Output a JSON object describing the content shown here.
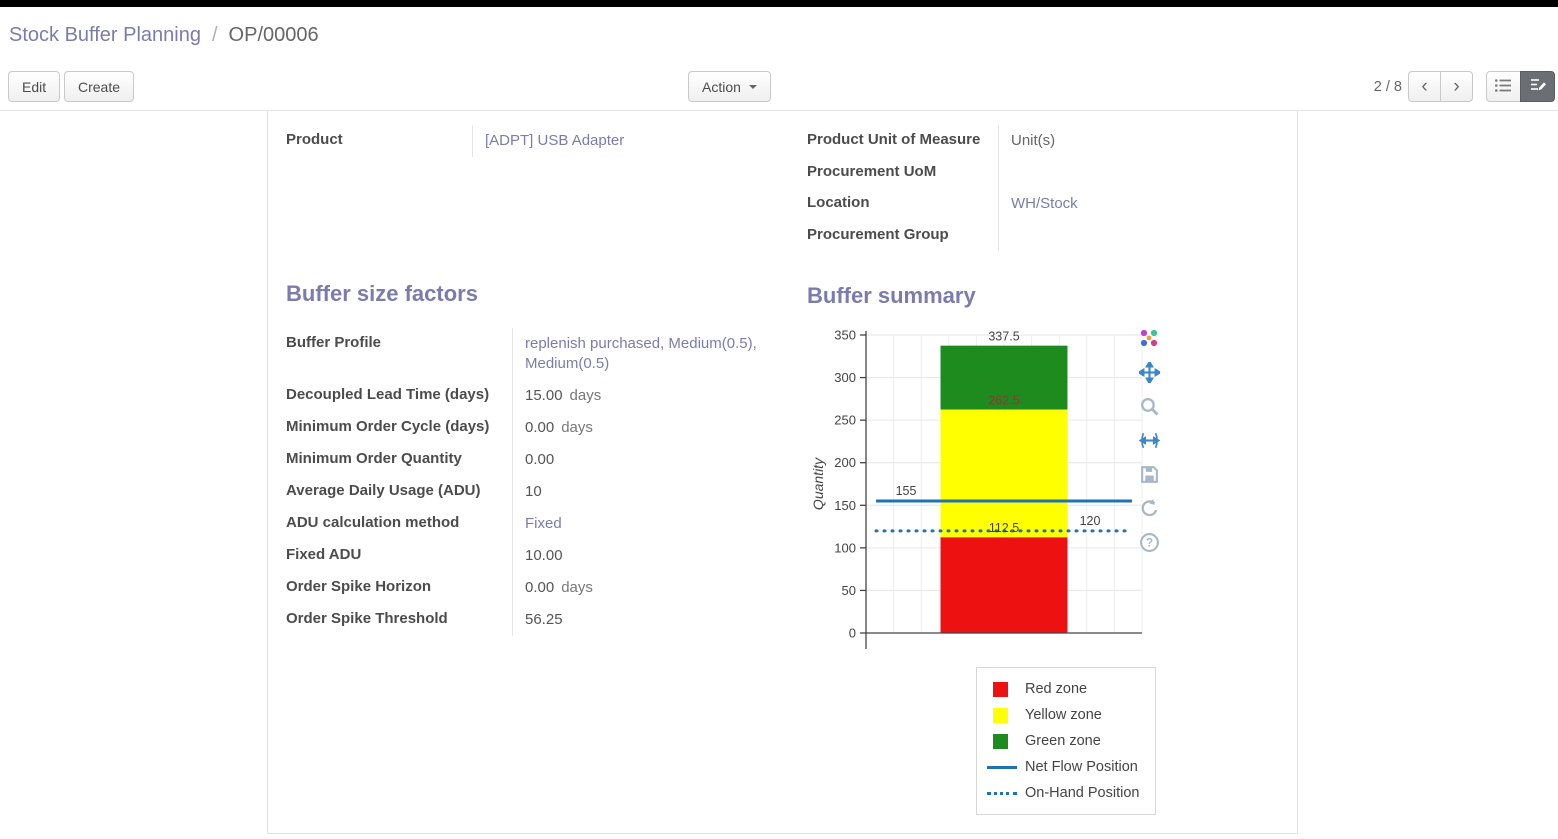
{
  "breadcrumb": {
    "section": "Stock Buffer Planning",
    "separator": "/",
    "record": "OP/00006"
  },
  "toolbar": {
    "edit_label": "Edit",
    "create_label": "Create",
    "action_label": "Action",
    "pager": "2 / 8"
  },
  "icons": {
    "chevron_left": "‹",
    "chevron_right": "›",
    "caret_down": "caret-down",
    "list_view": "list-view",
    "form_view": "form-view"
  },
  "sheet": {
    "product_group": {
      "left": [
        {
          "label": "Product",
          "value": "[ADPT] USB Adapter"
        }
      ],
      "right": [
        {
          "label": "Product Unit of Measure",
          "value": "Unit(s)"
        },
        {
          "label": "Procurement UoM",
          "value": ""
        },
        {
          "label": "Location",
          "value": "WH/Stock"
        },
        {
          "label": "Procurement Group",
          "value": ""
        }
      ]
    },
    "factors": {
      "title": "Buffer size factors",
      "rows": [
        {
          "label": "Buffer Profile",
          "value": "replenish purchased, Medium(0.5), Medium(0.5)",
          "suffix": ""
        },
        {
          "label": "Decoupled Lead Time (days)",
          "value": "15.00",
          "suffix": "days"
        },
        {
          "label": "Minimum Order Cycle (days)",
          "value": "0.00",
          "suffix": "days"
        },
        {
          "label": "Minimum Order Quantity",
          "value": "0.00",
          "suffix": ""
        },
        {
          "label": "Average Daily Usage (ADU)",
          "value": "10",
          "suffix": ""
        },
        {
          "label": "ADU calculation method",
          "value": "Fixed",
          "suffix": ""
        },
        {
          "label": "Fixed ADU",
          "value": "10.00",
          "suffix": ""
        },
        {
          "label": "Order Spike Horizon",
          "value": "0.00",
          "suffix": "days"
        },
        {
          "label": "Order Spike Threshold",
          "value": "56.25",
          "suffix": ""
        }
      ]
    },
    "summary": {
      "title": "Buffer summary"
    }
  },
  "chart_data": {
    "type": "bar",
    "title": "",
    "xlabel": "",
    "ylabel": "Quantity",
    "ylim": [
      0,
      350
    ],
    "yticks": [
      0,
      50,
      100,
      150,
      200,
      250,
      300,
      350
    ],
    "grid": true,
    "zones": [
      {
        "name": "Red zone",
        "from": 0,
        "to": 112.5,
        "color": "#ee1111"
      },
      {
        "name": "Yellow zone",
        "from": 112.5,
        "to": 262.5,
        "color": "#ffff00"
      },
      {
        "name": "Green zone",
        "from": 262.5,
        "to": 337.5,
        "color": "#1d8b1d"
      }
    ],
    "bar_labels": [
      {
        "text": "337.5",
        "value": 337.5,
        "color": "#444444"
      },
      {
        "text": "262.5",
        "value": 262.5,
        "color": "#993333"
      },
      {
        "text": "112.5",
        "value": 112.5,
        "color": "#444444"
      }
    ],
    "lines": [
      {
        "name": "Net Flow Position",
        "value": 155,
        "style": "solid",
        "color": "#2171b5",
        "label": "155",
        "label_side": "left"
      },
      {
        "name": "On-Hand Position",
        "value": 120,
        "style": "dotted",
        "color": "#2171b5",
        "label": "120",
        "label_side": "right"
      }
    ],
    "legend": [
      "Red zone",
      "Yellow zone",
      "Green zone",
      "Net Flow Position",
      "On-Hand Position"
    ],
    "legend_position": "bottom-right"
  },
  "chart_toolbar": {
    "icons": [
      "plotly-logo",
      "pan",
      "zoom",
      "autoscale",
      "save",
      "reset-axes",
      "help"
    ]
  },
  "colors": {
    "accent": "#7c7bad",
    "link": "#7c7bad",
    "net_flow_blue": "#2171b5"
  }
}
